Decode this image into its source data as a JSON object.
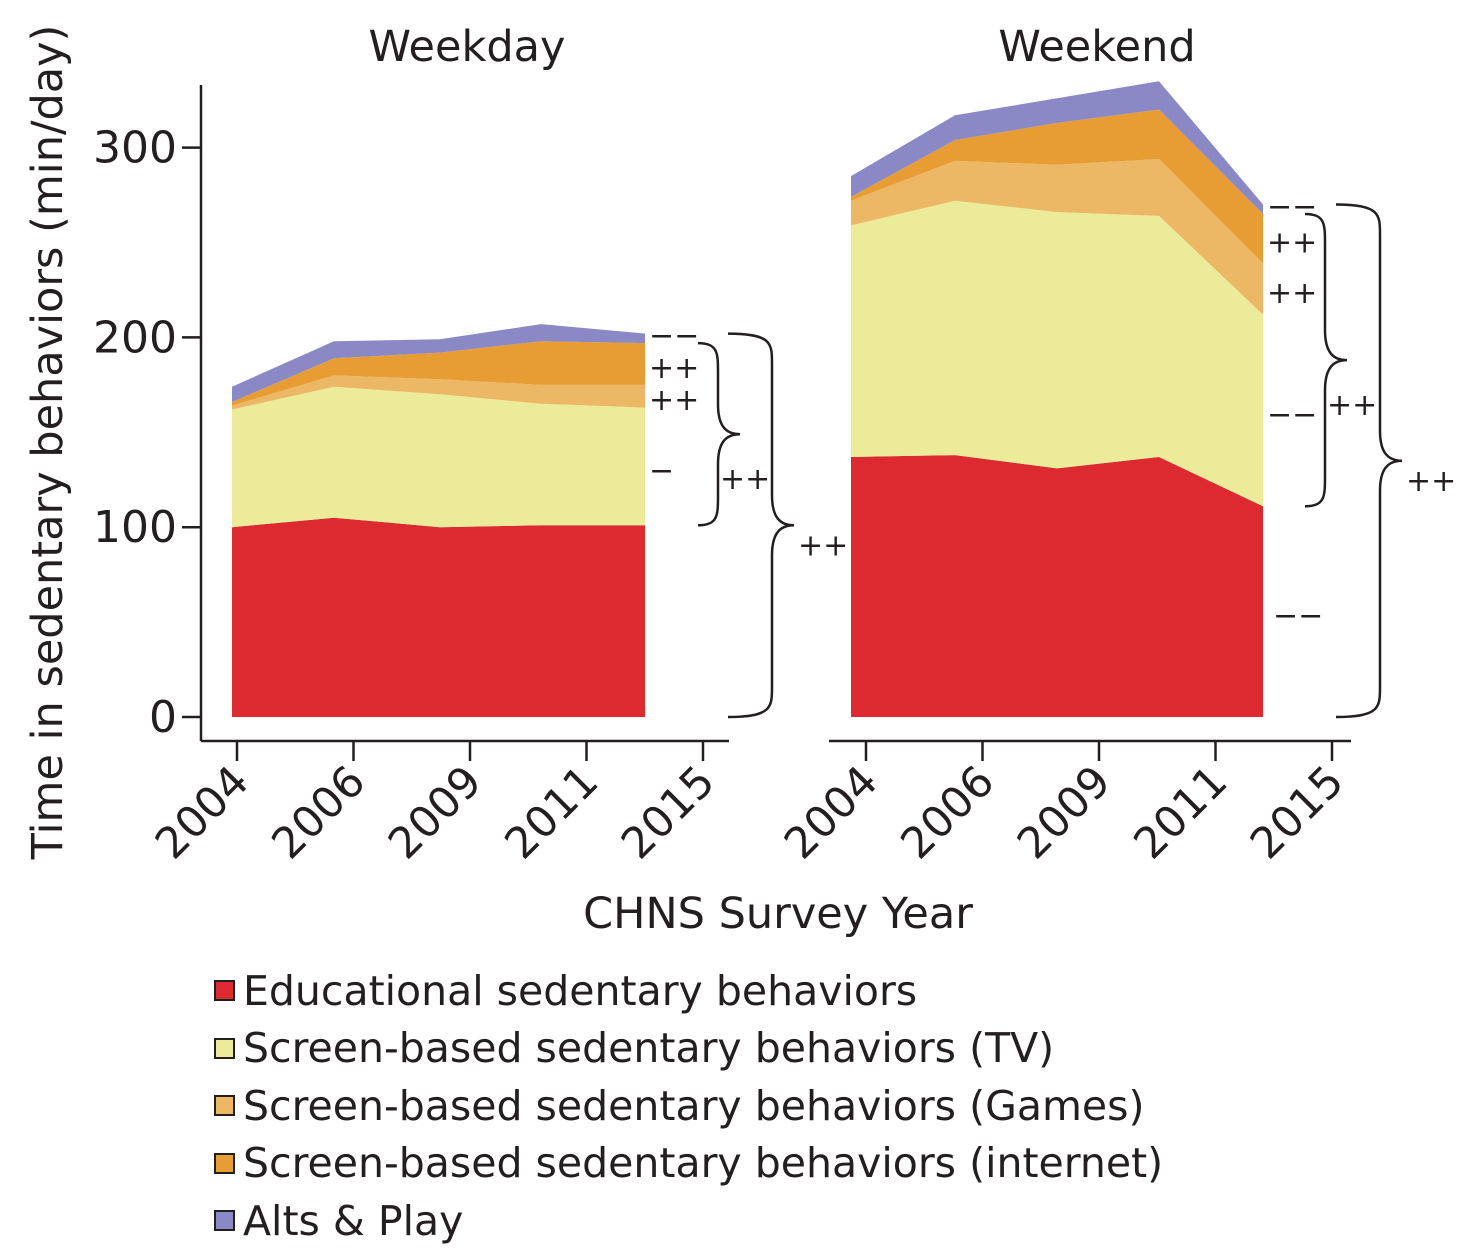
{
  "chart_data": {
    "type": "area",
    "stacked": true,
    "ylabel": "Time in sedentary behaviors (min/day)",
    "xlabel": "CHNS Survey Year",
    "ylim": [
      0,
      335
    ],
    "yticks": [
      0,
      100,
      200,
      300
    ],
    "categories": [
      "2004",
      "2006",
      "2009",
      "2011",
      "2015"
    ],
    "series": [
      {
        "name": "Educational sedentary behaviors",
        "color": "#dc2a30"
      },
      {
        "name": "Screen-based sedentary behaviors (TV)",
        "color": "#ebeb9a"
      },
      {
        "name": "Screen-based sedentary behaviors (Games)",
        "color": "#edb865"
      },
      {
        "name": "Screen-based sedentary behaviors (internet)",
        "color": "#e79d33"
      },
      {
        "name": "Alts & Play",
        "color": "#8b88c6"
      }
    ],
    "panels": [
      {
        "title": "Weekday",
        "values": {
          "Educational sedentary behaviors": [
            100,
            105,
            100,
            101,
            101
          ],
          "Screen-based sedentary behaviors (TV)": [
            62,
            69,
            70,
            64,
            62
          ],
          "Screen-based sedentary behaviors (Games)": [
            2,
            6,
            8,
            10,
            12
          ],
          "Screen-based sedentary behaviors (internet)": [
            2,
            9,
            14,
            23,
            22
          ],
          "Alts & Play": [
            8,
            9,
            7,
            9,
            5
          ]
        },
        "trend_marks": {
          "Alts & Play": "−−",
          "Screen-based sedentary behaviors (internet)": "++",
          "Screen-based sedentary behaviors (Games)": "++",
          "Screen-based sedentary behaviors (TV)": "−",
          "screen_total": "++",
          "total": "++"
        }
      },
      {
        "title": "Weekend",
        "values": {
          "Educational sedentary behaviors": [
            137,
            138,
            131,
            137,
            111
          ],
          "Screen-based sedentary behaviors (TV)": [
            122,
            134,
            135,
            127,
            101
          ],
          "Screen-based sedentary behaviors (Games)": [
            13,
            21,
            25,
            30,
            27
          ],
          "Screen-based sedentary behaviors (internet)": [
            2,
            11,
            22,
            26,
            26
          ],
          "Alts & Play": [
            11,
            13,
            13,
            15,
            5
          ]
        },
        "trend_marks": {
          "Alts & Play": "−−",
          "Screen-based sedentary behaviors (internet)": "++",
          "Screen-based sedentary behaviors (Games)": "++",
          "Screen-based sedentary behaviors (TV)": "−−",
          "Educational sedentary behaviors": "−−",
          "screen_total": "++",
          "total": "++"
        }
      }
    ]
  }
}
